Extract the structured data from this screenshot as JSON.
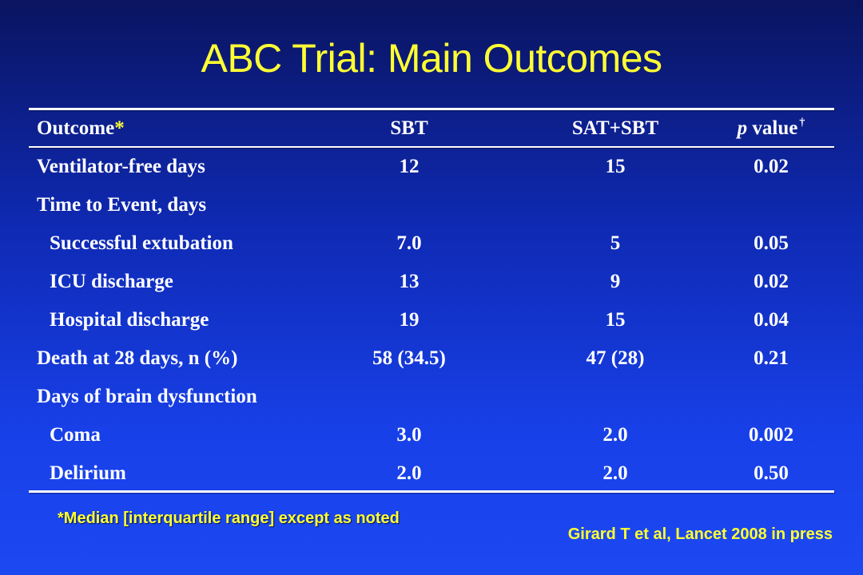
{
  "slide": {
    "title": "ABC Trial: Main Outcomes",
    "footnote": "*Median [interquartile range] except as noted",
    "citation": "Girard T et al, Lancet 2008 in press",
    "colors": {
      "title": "#ffff33",
      "text": "#ffffff",
      "background_top": "#0a1460",
      "background_bottom": "#1c48f2"
    }
  },
  "table": {
    "header": {
      "outcome": "Outcome",
      "outcome_marker": "*",
      "sbt": "SBT",
      "sat_sbt": "SAT+SBT",
      "p_value_italic": "p",
      "p_value_rest": " value",
      "p_value_marker": "†"
    },
    "rows": [
      {
        "label": "Ventilator-free days",
        "sbt": "12",
        "sat_sbt": "15",
        "p": "0.02"
      },
      {
        "label": "Time to Event, days",
        "sbt": "",
        "sat_sbt": "",
        "p": ""
      },
      {
        "label": "Successful extubation",
        "sbt": "7.0",
        "sat_sbt": "5",
        "p": "0.05"
      },
      {
        "label": "ICU discharge",
        "sbt": "13",
        "sat_sbt": "9",
        "p": "0.02"
      },
      {
        "label": "Hospital discharge",
        "sbt": "19",
        "sat_sbt": "15",
        "p": "0.04"
      },
      {
        "label": "Death at 28 days, n (%)",
        "sbt": "58 (34.5)",
        "sat_sbt": "47 (28)",
        "p": "0.21"
      },
      {
        "label": "Days of brain dysfunction",
        "sbt": "",
        "sat_sbt": "",
        "p": ""
      },
      {
        "label": "Coma",
        "sbt": "3.0",
        "sat_sbt": "2.0",
        "p": "0.002"
      },
      {
        "label": "Delirium",
        "sbt": "2.0",
        "sat_sbt": "2.0",
        "p": "0.50"
      }
    ]
  }
}
